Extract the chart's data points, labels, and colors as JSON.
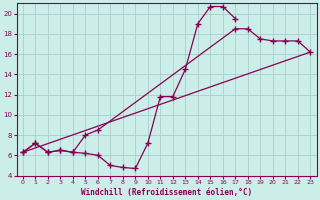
{
  "xlabel": "Windchill (Refroidissement éolien,°C)",
  "bg_color": "#cceee8",
  "grid_color": "#aacccc",
  "line_color": "#880055",
  "xlim": [
    -0.5,
    23.5
  ],
  "ylim": [
    4,
    21
  ],
  "xticks": [
    0,
    1,
    2,
    3,
    4,
    5,
    6,
    7,
    8,
    9,
    10,
    11,
    12,
    13,
    14,
    15,
    16,
    17,
    18,
    19,
    20,
    21,
    22,
    23
  ],
  "yticks": [
    4,
    6,
    8,
    10,
    12,
    14,
    16,
    18,
    20
  ],
  "curve1_x": [
    0,
    1,
    2,
    3,
    4,
    5,
    6,
    7,
    8,
    9,
    10,
    11,
    12,
    13,
    14,
    15,
    16,
    17
  ],
  "curve1_y": [
    6.3,
    7.2,
    6.3,
    6.5,
    6.3,
    6.2,
    6.0,
    5.0,
    4.8,
    4.7,
    7.2,
    11.8,
    11.8,
    14.5,
    19.0,
    20.7,
    20.7,
    19.5
  ],
  "curve2_x": [
    0,
    1,
    2,
    3,
    4,
    5,
    6,
    17,
    18,
    19,
    20,
    21,
    22,
    23
  ],
  "curve2_y": [
    6.3,
    7.2,
    6.3,
    6.5,
    6.3,
    8.0,
    8.5,
    18.5,
    18.5,
    17.5,
    17.3,
    17.3,
    17.3,
    16.2
  ],
  "curve4_x": [
    0,
    23
  ],
  "curve4_y": [
    6.3,
    16.2
  ],
  "marker_x": [
    0,
    1,
    2,
    3,
    4,
    5,
    6,
    7,
    8,
    9,
    10,
    11,
    12,
    13,
    14,
    15,
    16,
    17,
    18,
    19,
    20,
    21,
    22,
    23
  ],
  "marker_y": [
    6.3,
    7.2,
    6.3,
    6.5,
    6.3,
    6.2,
    6.0,
    5.0,
    4.8,
    4.7,
    7.2,
    11.8,
    11.8,
    14.5,
    19.0,
    20.7,
    20.7,
    19.5,
    18.5,
    17.5,
    17.3,
    17.3,
    17.3,
    16.2
  ]
}
